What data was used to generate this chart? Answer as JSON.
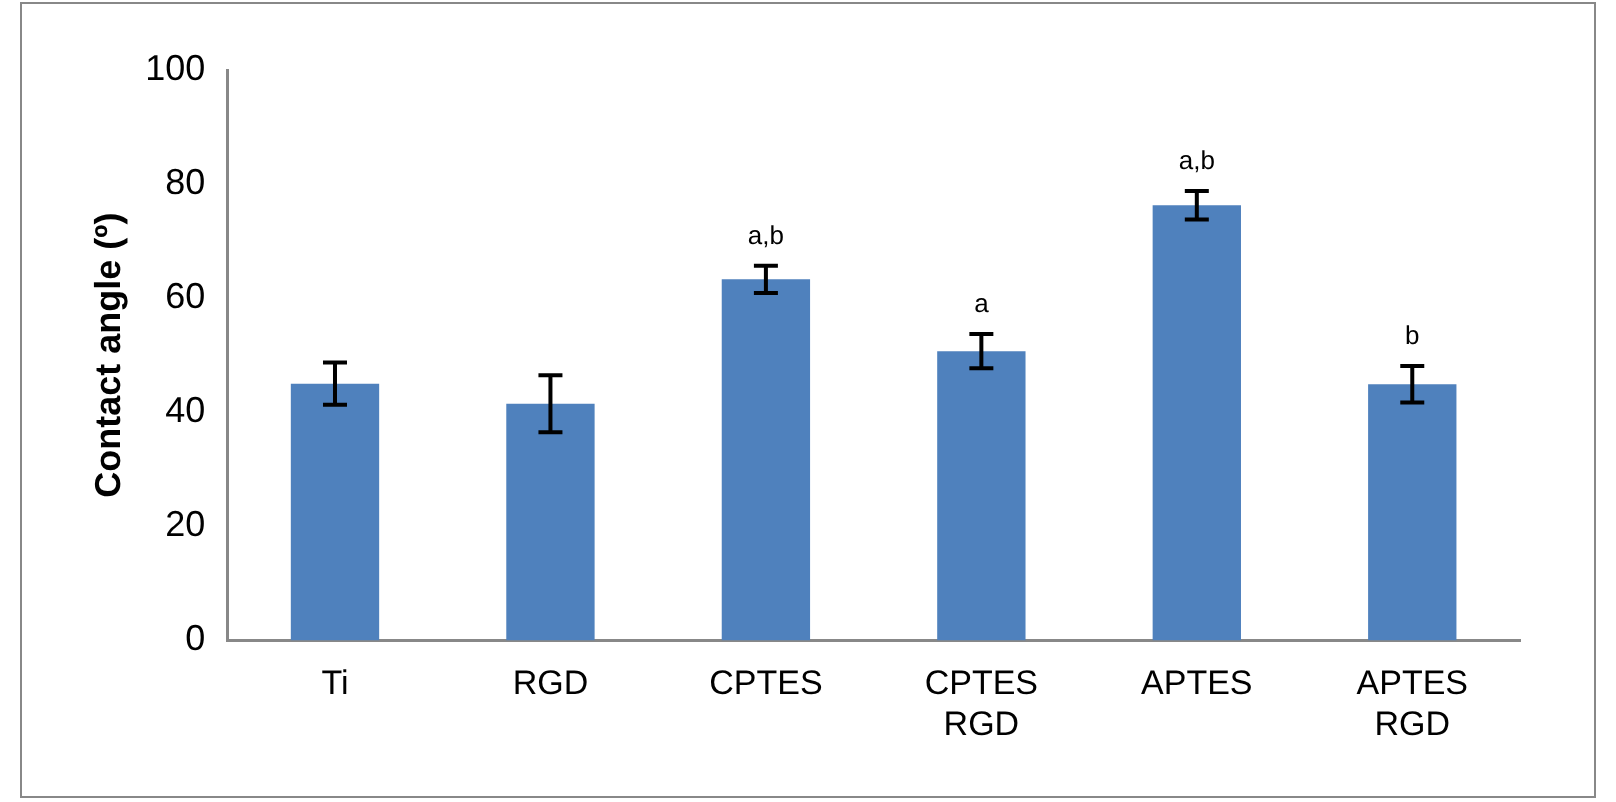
{
  "chart_data": {
    "type": "bar",
    "ylabel": "Contact angle (º)",
    "categories": [
      "Ti",
      "RGD",
      "CPTES",
      "CPTES\nRGD",
      "APTES",
      "APTES\nRGD"
    ],
    "values": [
      45,
      41.5,
      63.3,
      50.7,
      76.3,
      44.9
    ],
    "errors": [
      3.7,
      5,
      2.4,
      3,
      2.5,
      3.2
    ],
    "color": "#4f81bd",
    "ylim": [
      0,
      100
    ],
    "yticks": [
      0,
      20,
      40,
      60,
      80,
      100
    ],
    "grid": false,
    "annotations": [
      {
        "text": "a,b",
        "x": "CPTES",
        "y": 63.3
      },
      {
        "text": "a",
        "x": "CPTES\nRGD",
        "y": 50.7
      },
      {
        "text": "a,b",
        "x": "APTES",
        "y": 76.3
      },
      {
        "text": "b",
        "x": "APTES\nRGD",
        "y": 44.9
      }
    ]
  }
}
